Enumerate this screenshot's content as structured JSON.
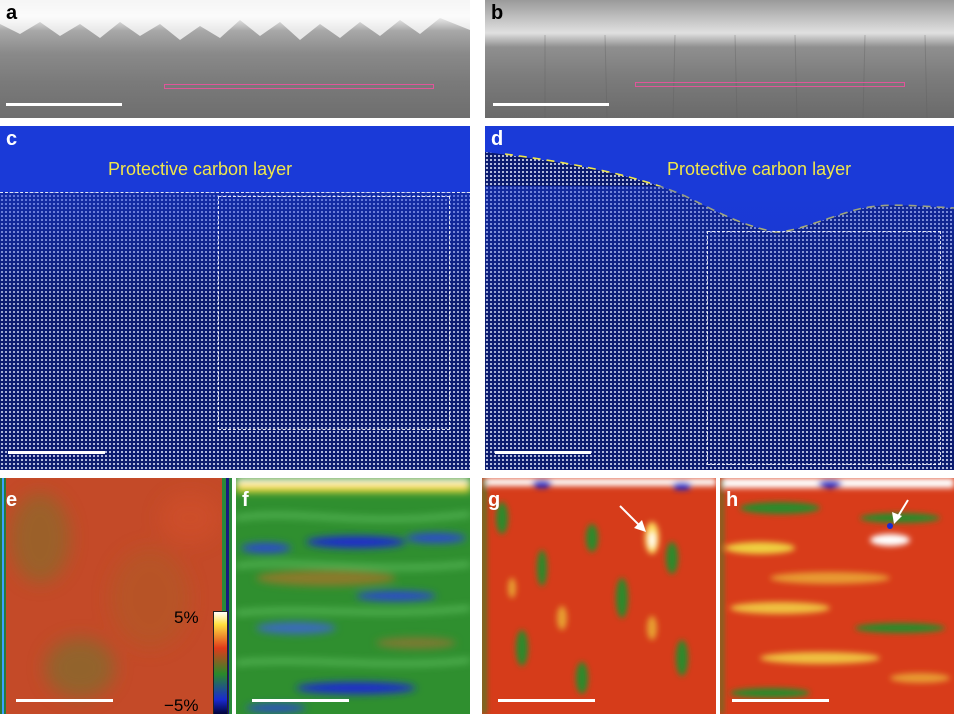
{
  "panels": {
    "a": {
      "label": "a"
    },
    "b": {
      "label": "b"
    },
    "c": {
      "label": "c",
      "annotation": "Protective carbon layer"
    },
    "d": {
      "label": "d",
      "annotation": "Protective carbon layer"
    },
    "e": {
      "label": "e"
    },
    "f": {
      "label": "f"
    },
    "g": {
      "label": "g"
    },
    "h": {
      "label": "h"
    }
  },
  "colorbar": {
    "max_label": "5%",
    "min_label": "−5%"
  },
  "colors": {
    "pink_box": "#e0559a",
    "annotation_yellow": "#f0e64a",
    "atom_blue": "#0a1a6e"
  }
}
